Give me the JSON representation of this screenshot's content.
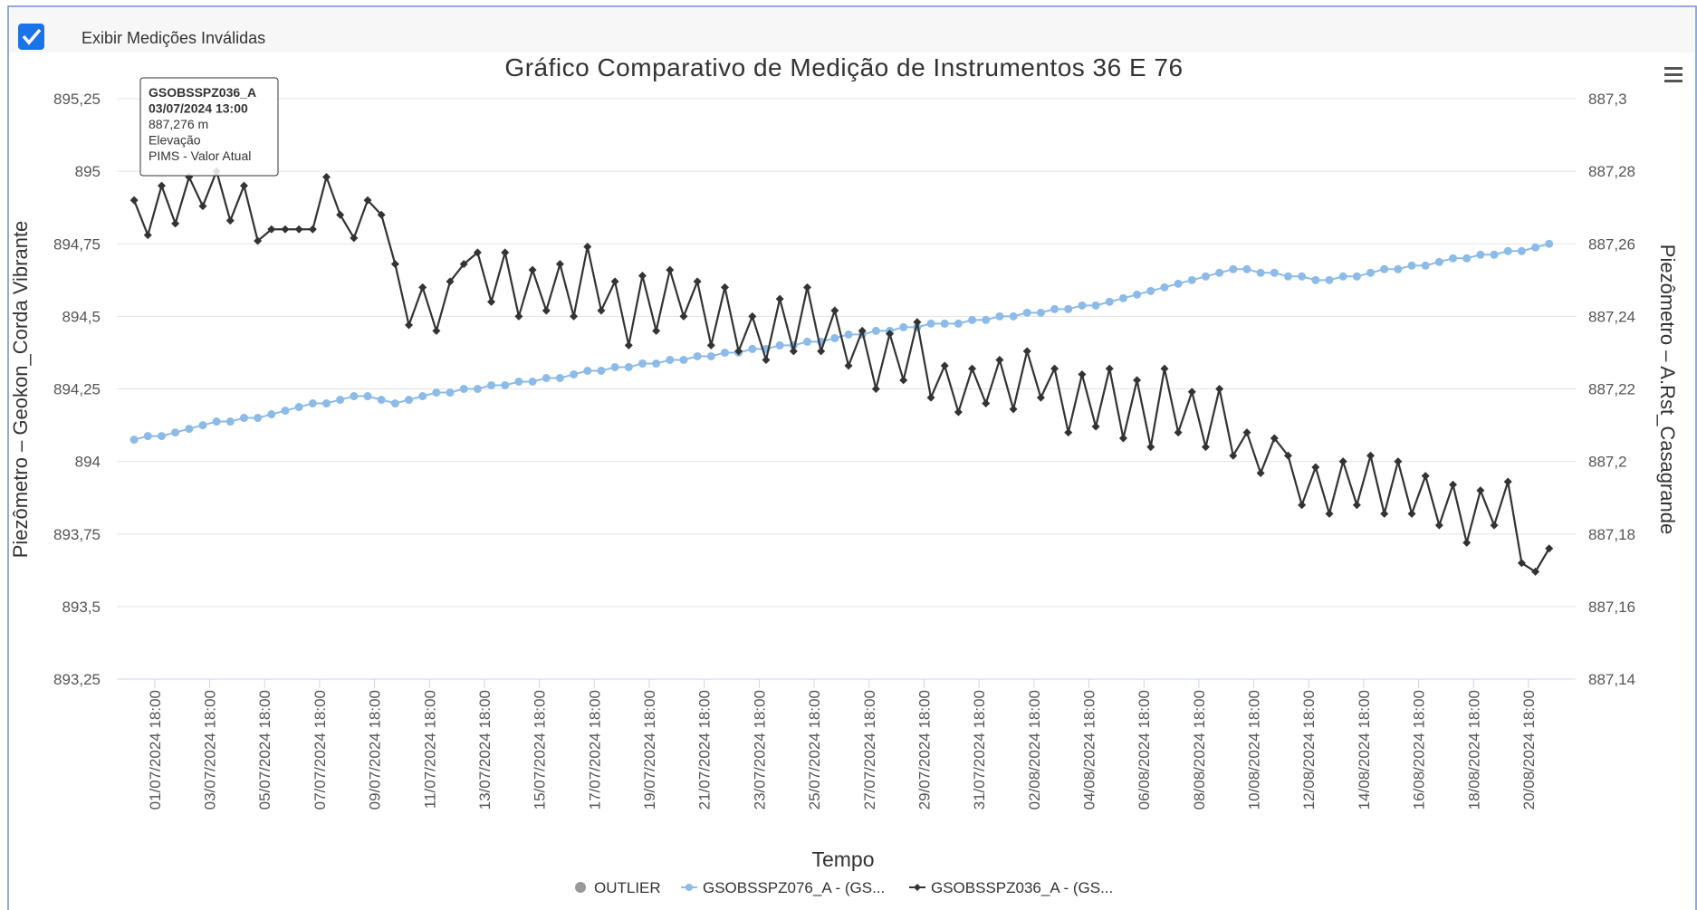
{
  "checkbox": {
    "label": "Exibir Medições Inválidas",
    "checked": true
  },
  "chart_data": {
    "type": "line",
    "title": "Gráfico Comparativo de Medição de Instrumentos 36 E 76",
    "x_label": "Tempo",
    "y_label": "Piezômetro – Geokon_Corda Vibrante",
    "y2_label": "Piezômetro – A.Rst_Casagrande",
    "x": [
      "01/07/2024 00:00",
      "01/07/2024 12:00",
      "02/07/2024 00:00",
      "02/07/2024 12:00",
      "03/07/2024 00:00",
      "03/07/2024 12:00",
      "04/07/2024 00:00",
      "04/07/2024 12:00",
      "05/07/2024 00:00",
      "05/07/2024 12:00",
      "06/07/2024 00:00",
      "06/07/2024 12:00",
      "07/07/2024 00:00",
      "07/07/2024 12:00",
      "08/07/2024 00:00",
      "08/07/2024 12:00",
      "09/07/2024 00:00",
      "09/07/2024 12:00",
      "10/07/2024 00:00",
      "10/07/2024 12:00",
      "11/07/2024 00:00",
      "11/07/2024 12:00",
      "12/07/2024 00:00",
      "12/07/2024 12:00",
      "13/07/2024 00:00",
      "13/07/2024 12:00",
      "14/07/2024 00:00",
      "14/07/2024 12:00",
      "15/07/2024 00:00",
      "15/07/2024 12:00",
      "16/07/2024 00:00",
      "16/07/2024 12:00",
      "17/07/2024 00:00",
      "17/07/2024 12:00",
      "18/07/2024 00:00",
      "18/07/2024 12:00",
      "19/07/2024 00:00",
      "19/07/2024 12:00",
      "20/07/2024 00:00",
      "20/07/2024 12:00",
      "21/07/2024 00:00",
      "21/07/2024 12:00",
      "22/07/2024 00:00",
      "22/07/2024 12:00",
      "23/07/2024 00:00",
      "23/07/2024 12:00",
      "24/07/2024 00:00",
      "24/07/2024 12:00",
      "25/07/2024 00:00",
      "25/07/2024 12:00",
      "26/07/2024 00:00",
      "26/07/2024 12:00",
      "27/07/2024 00:00",
      "27/07/2024 12:00",
      "28/07/2024 00:00",
      "28/07/2024 12:00",
      "29/07/2024 00:00",
      "29/07/2024 12:00",
      "30/07/2024 00:00",
      "30/07/2024 12:00",
      "31/07/2024 00:00",
      "31/07/2024 12:00",
      "01/08/2024 00:00",
      "01/08/2024 12:00",
      "02/08/2024 00:00",
      "02/08/2024 12:00",
      "03/08/2024 00:00",
      "03/08/2024 12:00",
      "04/08/2024 00:00",
      "04/08/2024 12:00",
      "05/08/2024 00:00",
      "05/08/2024 12:00",
      "06/08/2024 00:00",
      "06/08/2024 12:00",
      "07/08/2024 00:00",
      "07/08/2024 12:00",
      "08/08/2024 00:00",
      "08/08/2024 12:00",
      "09/08/2024 00:00",
      "09/08/2024 12:00",
      "10/08/2024 00:00",
      "10/08/2024 12:00",
      "11/08/2024 00:00",
      "11/08/2024 12:00",
      "12/08/2024 00:00",
      "12/08/2024 12:00",
      "13/08/2024 00:00",
      "13/08/2024 12:00",
      "14/08/2024 00:00",
      "14/08/2024 12:00",
      "15/08/2024 00:00",
      "15/08/2024 12:00",
      "16/08/2024 00:00",
      "16/08/2024 12:00",
      "17/08/2024 00:00",
      "17/08/2024 12:00",
      "18/08/2024 00:00",
      "18/08/2024 12:00",
      "19/08/2024 00:00",
      "19/08/2024 12:00",
      "20/08/2024 00:00",
      "20/08/2024 12:00",
      "21/08/2024 00:00",
      "21/08/2024 12:00"
    ],
    "series": [
      {
        "name": "GSOBSSPZ076_A - (GS...",
        "color": "#8cbbe8",
        "axis": "y2",
        "marker": "circle",
        "values": [
          887.206,
          887.207,
          887.207,
          887.208,
          887.209,
          887.21,
          887.211,
          887.211,
          887.212,
          887.212,
          887.213,
          887.214,
          887.215,
          887.216,
          887.216,
          887.217,
          887.218,
          887.218,
          887.217,
          887.216,
          887.217,
          887.218,
          887.219,
          887.219,
          887.22,
          887.22,
          887.221,
          887.221,
          887.222,
          887.222,
          887.223,
          887.223,
          887.224,
          887.225,
          887.225,
          887.226,
          887.226,
          887.227,
          887.227,
          887.228,
          887.228,
          887.229,
          887.229,
          887.23,
          887.23,
          887.231,
          887.231,
          887.232,
          887.232,
          887.233,
          887.233,
          887.234,
          887.235,
          887.235,
          887.236,
          887.236,
          887.237,
          887.237,
          887.238,
          887.238,
          887.238,
          887.239,
          887.239,
          887.24,
          887.24,
          887.241,
          887.241,
          887.242,
          887.242,
          887.243,
          887.243,
          887.244,
          887.245,
          887.246,
          887.247,
          887.248,
          887.249,
          887.25,
          887.251,
          887.252,
          887.253,
          887.253,
          887.252,
          887.252,
          887.251,
          887.251,
          887.25,
          887.25,
          887.251,
          887.251,
          887.252,
          887.253,
          887.253,
          887.254,
          887.254,
          887.255,
          887.256,
          887.256,
          887.257,
          887.257,
          887.258,
          887.258,
          887.259,
          887.26
        ]
      },
      {
        "name": "GSOBSSPZ036_A - (GS...",
        "color": "#333333",
        "axis": "y",
        "marker": "diamond",
        "values": [
          894.9,
          894.78,
          894.95,
          894.82,
          894.98,
          894.88,
          895.0,
          894.83,
          894.95,
          894.76,
          894.8,
          894.8,
          894.8,
          894.8,
          894.98,
          894.85,
          894.77,
          894.9,
          894.85,
          894.68,
          894.47,
          894.6,
          894.45,
          894.62,
          894.68,
          894.72,
          894.55,
          894.72,
          894.5,
          894.66,
          894.52,
          894.68,
          894.5,
          894.74,
          894.52,
          894.62,
          894.4,
          894.64,
          894.45,
          894.66,
          894.5,
          894.62,
          894.4,
          894.6,
          894.38,
          894.5,
          894.35,
          894.56,
          894.38,
          894.6,
          894.38,
          894.52,
          894.33,
          894.45,
          894.25,
          894.44,
          894.28,
          894.48,
          894.22,
          894.33,
          894.17,
          894.32,
          894.2,
          894.35,
          894.18,
          894.38,
          894.22,
          894.32,
          894.1,
          894.3,
          894.12,
          894.32,
          894.08,
          894.28,
          894.05,
          894.32,
          894.1,
          894.24,
          894.05,
          894.25,
          894.02,
          894.1,
          893.96,
          894.08,
          894.02,
          893.85,
          893.98,
          893.82,
          894.0,
          893.85,
          894.02,
          893.82,
          894.0,
          893.82,
          893.95,
          893.78,
          893.92,
          893.72,
          893.9,
          893.78,
          893.93,
          893.65,
          893.62,
          893.7
        ]
      }
    ],
    "outlier_legend": {
      "name": "OUTLIER",
      "color": "#999999"
    },
    "xticks": [
      "01/07/2024 18:00",
      "03/07/2024 18:00",
      "05/07/2024 18:00",
      "07/07/2024 18:00",
      "09/07/2024 18:00",
      "11/07/2024 18:00",
      "13/07/2024 18:00",
      "15/07/2024 18:00",
      "17/07/2024 18:00",
      "19/07/2024 18:00",
      "21/07/2024 18:00",
      "23/07/2024 18:00",
      "25/07/2024 18:00",
      "27/07/2024 18:00",
      "29/07/2024 18:00",
      "31/07/2024 18:00",
      "02/08/2024 18:00",
      "04/08/2024 18:00",
      "06/08/2024 18:00",
      "08/08/2024 18:00",
      "10/08/2024 18:00",
      "12/08/2024 18:00",
      "14/08/2024 18:00",
      "16/08/2024 18:00",
      "18/08/2024 18:00",
      "20/08/2024 18:00"
    ],
    "ylim": [
      893.25,
      895.25
    ],
    "yticks": [
      {
        "value": 893.25,
        "label": "893,25"
      },
      {
        "value": 893.5,
        "label": "893,5"
      },
      {
        "value": 893.75,
        "label": "893,75"
      },
      894,
      {
        "value": 894.25,
        "label": "894,25"
      },
      {
        "value": 894.5,
        "label": "894,5"
      },
      {
        "value": 894.75,
        "label": "894,75"
      },
      895,
      {
        "value": 895.25,
        "label": "895,25"
      }
    ],
    "y2lim": [
      887.14,
      887.3
    ],
    "y2ticks": [
      {
        "value": 887.14,
        "label": "887,14"
      },
      {
        "value": 887.16,
        "label": "887,16"
      },
      {
        "value": 887.18,
        "label": "887,18"
      },
      {
        "value": 887.2,
        "label": "887,2"
      },
      {
        "value": 887.22,
        "label": "887,22"
      },
      {
        "value": 887.24,
        "label": "887,24"
      },
      {
        "value": 887.26,
        "label": "887,26"
      },
      {
        "value": 887.28,
        "label": "887,28"
      },
      {
        "value": 887.3,
        "label": "887,3"
      }
    ],
    "grid": true,
    "legend": "bottom",
    "tooltip": {
      "lines": [
        "GSOBSSPZ036_A",
        "03/07/2024 13:00",
        "887,276 m",
        "Elevação",
        "PIMS - Valor Atual"
      ]
    }
  }
}
